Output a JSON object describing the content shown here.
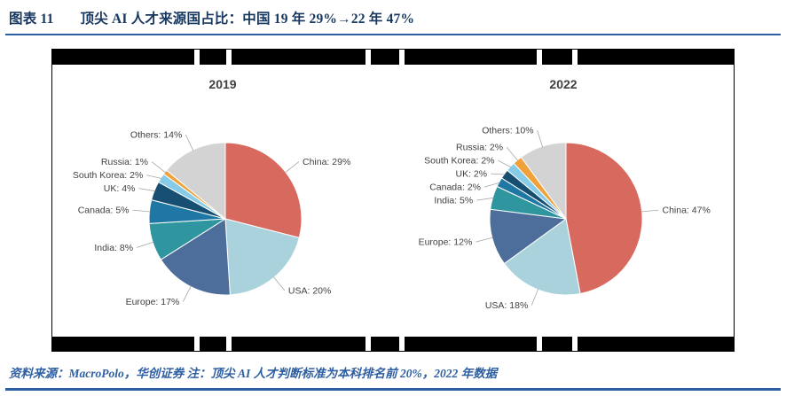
{
  "header": {
    "label": "图表 11",
    "title": "顶尖 AI 人才来源国占比：中国 19 年 29%→22 年 47%"
  },
  "footer": {
    "source": "资料来源：MacroPolo，华创证券  注：顶尖 AI 人才判断标准为本科排名前 20%，2022 年数据"
  },
  "colors": {
    "accent_line": "#2e5fa3",
    "title_text": "#17375e",
    "source_text": "#2e5fa3",
    "chart_title_text": "#404040",
    "label_text": "#404040",
    "leader_line": "#a6a6a6",
    "frame": "#000000",
    "slices": {
      "China": "#d8695e",
      "USA": "#a9d2dc",
      "Europe": "#4d6d9b",
      "India": "#2f96a0",
      "Canada": "#1f78a4",
      "UK": "#174f72",
      "South Korea": "#86cbe8",
      "Russia": "#f0a13a",
      "Others": "#d3d3d3"
    }
  },
  "chart_data": [
    {
      "type": "pie",
      "title": "2019",
      "categories": [
        "China",
        "USA",
        "Europe",
        "India",
        "Canada",
        "UK",
        "South Korea",
        "Russia",
        "Others"
      ],
      "values": [
        29,
        20,
        17,
        8,
        5,
        4,
        2,
        1,
        14
      ],
      "label_format": "{category}: {value}%",
      "legend": "none",
      "start_angle": "top",
      "direction": "clockwise"
    },
    {
      "type": "pie",
      "title": "2022",
      "categories": [
        "China",
        "USA",
        "Europe",
        "India",
        "Canada",
        "UK",
        "South Korea",
        "Russia",
        "Others"
      ],
      "values": [
        47,
        18,
        12,
        5,
        2,
        2,
        2,
        2,
        10
      ],
      "label_format": "{category}: {value}%",
      "legend": "none",
      "start_angle": "top",
      "direction": "clockwise"
    }
  ]
}
